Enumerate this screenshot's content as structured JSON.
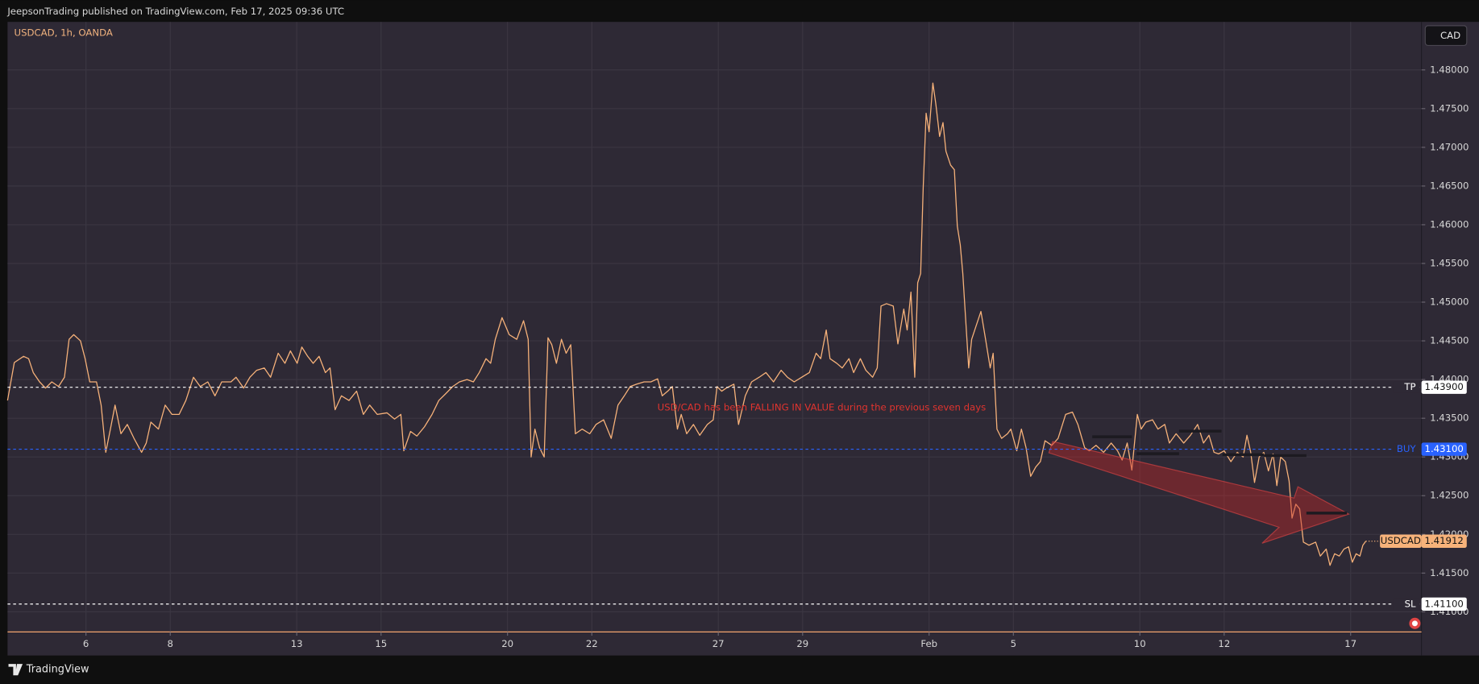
{
  "header": {
    "text": "JeepsonTrading published on TradingView.com, Feb 17, 2025 09:36 UTC"
  },
  "footer": {
    "brand": "TradingView"
  },
  "chart_data": {
    "type": "line",
    "title": "USDCAD, 1h, OANDA",
    "currency": "CAD",
    "annotation": "USD/CAD has been FALLING IN VALUE during the previous seven days",
    "grid": true,
    "xlim": [
      -1.86,
      31.68
    ],
    "ylim": [
      1.4074,
      1.4862
    ],
    "xticks": [
      {
        "value": 0,
        "label": "6"
      },
      {
        "value": 2,
        "label": "8"
      },
      {
        "value": 5,
        "label": "13"
      },
      {
        "value": 7,
        "label": "15"
      },
      {
        "value": 10,
        "label": "20"
      },
      {
        "value": 12,
        "label": "22"
      },
      {
        "value": 15,
        "label": "27"
      },
      {
        "value": 17,
        "label": "29"
      },
      {
        "value": 20,
        "label": "Feb"
      },
      {
        "value": 22,
        "label": "5"
      },
      {
        "value": 25,
        "label": "10"
      },
      {
        "value": 27,
        "label": "12"
      },
      {
        "value": 30,
        "label": "17"
      }
    ],
    "yticks": [
      {
        "value": 1.41,
        "label": "1.41000"
      },
      {
        "value": 1.415,
        "label": "1.41500"
      },
      {
        "value": 1.42,
        "label": "1.42000"
      },
      {
        "value": 1.425,
        "label": "1.42500"
      },
      {
        "value": 1.43,
        "label": "1.43000"
      },
      {
        "value": 1.435,
        "label": "1.43500"
      },
      {
        "value": 1.44,
        "label": "1.44000"
      },
      {
        "value": 1.445,
        "label": "1.44500"
      },
      {
        "value": 1.45,
        "label": "1.45000"
      },
      {
        "value": 1.455,
        "label": "1.45500"
      },
      {
        "value": 1.46,
        "label": "1.46000"
      },
      {
        "value": 1.465,
        "label": "1.46500"
      },
      {
        "value": 1.47,
        "label": "1.47000"
      },
      {
        "value": 1.475,
        "label": "1.47500"
      },
      {
        "value": 1.48,
        "label": "1.48000"
      }
    ],
    "hlines": [
      {
        "name": "TP",
        "value": 1.439,
        "label": "1.43900",
        "color": "#ffffff",
        "text_color": "#131313"
      },
      {
        "name": "BUY",
        "value": 1.431,
        "label": "1.43100",
        "color": "#2962ff",
        "text_color": "#ffffff"
      },
      {
        "name": "SL",
        "value": 1.411,
        "label": "1.41100",
        "color": "#ffffff",
        "text_color": "#131313"
      }
    ],
    "x": [
      -1.86,
      -1.7,
      -1.48,
      -1.36,
      -1.25,
      -1.1,
      -0.96,
      -0.81,
      -0.65,
      -0.51,
      -0.4,
      -0.29,
      -0.13,
      -0.02,
      0.09,
      0.25,
      0.36,
      0.47,
      0.58,
      0.69,
      0.83,
      0.98,
      1.14,
      1.32,
      1.43,
      1.54,
      1.72,
      1.88,
      2.04,
      2.21,
      2.37,
      2.55,
      2.71,
      2.89,
      3.06,
      3.22,
      3.44,
      3.56,
      3.74,
      3.89,
      4.05,
      4.23,
      4.38,
      4.56,
      4.72,
      4.85,
      5.01,
      5.12,
      5.26,
      5.39,
      5.53,
      5.68,
      5.79,
      5.91,
      6.06,
      6.24,
      6.42,
      6.58,
      6.73,
      6.91,
      7.14,
      7.32,
      7.47,
      7.54,
      7.7,
      7.85,
      8.03,
      8.21,
      8.37,
      8.52,
      8.7,
      8.86,
      9.04,
      9.19,
      9.33,
      9.49,
      9.6,
      9.71,
      9.87,
      10.04,
      10.22,
      10.38,
      10.49,
      10.56,
      10.65,
      10.76,
      10.87,
      10.96,
      11.05,
      11.16,
      11.28,
      11.39,
      11.5,
      11.61,
      11.77,
      11.95,
      12.1,
      12.28,
      12.46,
      12.62,
      12.77,
      12.91,
      13.06,
      13.24,
      13.4,
      13.56,
      13.67,
      13.8,
      13.91,
      14.03,
      14.12,
      14.25,
      14.41,
      14.56,
      14.74,
      14.88,
      14.97,
      15.08,
      15.19,
      15.37,
      15.48,
      15.64,
      15.79,
      15.97,
      16.13,
      16.31,
      16.49,
      16.64,
      16.8,
      16.98,
      17.16,
      17.32,
      17.43,
      17.56,
      17.65,
      17.81,
      17.94,
      18.1,
      18.21,
      18.37,
      18.5,
      18.66,
      18.77,
      18.86,
      18.99,
      19.15,
      19.26,
      19.4,
      19.48,
      19.57,
      19.66,
      19.73,
      19.8,
      19.86,
      19.93,
      20.0,
      20.09,
      20.16,
      20.25,
      20.33,
      20.4,
      20.51,
      20.6,
      20.67,
      20.74,
      20.8,
      20.87,
      20.94,
      21.01,
      21.12,
      21.23,
      21.34,
      21.45,
      21.52,
      21.61,
      21.72,
      21.86,
      21.94,
      22.08,
      22.19,
      22.3,
      22.41,
      22.53,
      22.64,
      22.75,
      22.91,
      23.06,
      23.24,
      23.4,
      23.53,
      23.69,
      23.8,
      23.96,
      24.14,
      24.32,
      24.47,
      24.58,
      24.7,
      24.81,
      24.94,
      25.03,
      25.14,
      25.3,
      25.43,
      25.59,
      25.7,
      25.86,
      26.04,
      26.2,
      26.37,
      26.51,
      26.64,
      26.76,
      26.87,
      27.0,
      27.16,
      27.31,
      27.45,
      27.54,
      27.63,
      27.72,
      27.83,
      27.94,
      28.05,
      28.16,
      28.25,
      28.34,
      28.45,
      28.54,
      28.61,
      28.7,
      28.79,
      28.88,
      29.01,
      29.17,
      29.28,
      29.42,
      29.51,
      29.62,
      29.73,
      29.84,
      29.95,
      30.04,
      30.13,
      30.22,
      30.29,
      30.36
    ],
    "series": [
      {
        "name": "USDCAD",
        "color": "#f7b27a",
        "values": [
          1.4373,
          1.4422,
          1.443,
          1.4427,
          1.4409,
          1.4397,
          1.4389,
          1.4397,
          1.4391,
          1.4403,
          1.4452,
          1.4458,
          1.445,
          1.4427,
          1.4397,
          1.4397,
          1.4367,
          1.4306,
          1.4336,
          1.4367,
          1.433,
          1.4342,
          1.4324,
          1.4306,
          1.4318,
          1.4345,
          1.4336,
          1.4367,
          1.4355,
          1.4355,
          1.4373,
          1.4403,
          1.4391,
          1.4397,
          1.4379,
          1.4397,
          1.4397,
          1.4403,
          1.4389,
          1.4403,
          1.4412,
          1.4415,
          1.4403,
          1.4434,
          1.4421,
          1.4437,
          1.4421,
          1.4442,
          1.443,
          1.4421,
          1.443,
          1.4409,
          1.4415,
          1.4361,
          1.4379,
          1.4373,
          1.4385,
          1.4355,
          1.4367,
          1.4355,
          1.4357,
          1.4349,
          1.4355,
          1.4308,
          1.4333,
          1.4327,
          1.4339,
          1.4355,
          1.4373,
          1.4381,
          1.4391,
          1.4397,
          1.44,
          1.4397,
          1.4409,
          1.4427,
          1.4421,
          1.4452,
          1.448,
          1.4458,
          1.4452,
          1.4476,
          1.4452,
          1.43,
          1.4336,
          1.4312,
          1.43,
          1.4454,
          1.4445,
          1.4421,
          1.4452,
          1.4434,
          1.4445,
          1.433,
          1.4336,
          1.433,
          1.4342,
          1.4348,
          1.4324,
          1.4367,
          1.4379,
          1.4391,
          1.4394,
          1.4397,
          1.4397,
          1.4401,
          1.4379,
          1.4385,
          1.4391,
          1.4336,
          1.4355,
          1.433,
          1.4342,
          1.4328,
          1.4342,
          1.4348,
          1.4391,
          1.4385,
          1.4389,
          1.4394,
          1.4342,
          1.4379,
          1.4397,
          1.4403,
          1.4409,
          1.4397,
          1.4412,
          1.4403,
          1.4397,
          1.4403,
          1.4409,
          1.4434,
          1.4427,
          1.4464,
          1.4427,
          1.4421,
          1.4415,
          1.4427,
          1.4409,
          1.4427,
          1.4412,
          1.4403,
          1.4415,
          1.4495,
          1.4498,
          1.4495,
          1.4446,
          1.4491,
          1.4464,
          1.4513,
          1.4403,
          1.4525,
          1.4537,
          1.4647,
          1.4744,
          1.472,
          1.4783,
          1.4756,
          1.4714,
          1.4732,
          1.4695,
          1.4677,
          1.4671,
          1.4598,
          1.4574,
          1.4537,
          1.4476,
          1.4415,
          1.4452,
          1.447,
          1.4488,
          1.4452,
          1.4415,
          1.4434,
          1.4336,
          1.4324,
          1.433,
          1.4336,
          1.4308,
          1.4336,
          1.4312,
          1.4275,
          1.4287,
          1.4294,
          1.4321,
          1.4315,
          1.4324,
          1.4355,
          1.4358,
          1.4342,
          1.4312,
          1.4308,
          1.4315,
          1.4306,
          1.4318,
          1.4308,
          1.4296,
          1.4318,
          1.4283,
          1.4355,
          1.4336,
          1.4345,
          1.4348,
          1.4336,
          1.4342,
          1.4318,
          1.433,
          1.4318,
          1.4328,
          1.4342,
          1.4318,
          1.4328,
          1.4306,
          1.4304,
          1.4308,
          1.4294,
          1.4306,
          1.43,
          1.4328,
          1.4306,
          1.4267,
          1.43,
          1.4306,
          1.4282,
          1.4304,
          1.4263,
          1.43,
          1.4294,
          1.4269,
          1.4221,
          1.4239,
          1.4233,
          1.419,
          1.4186,
          1.419,
          1.4172,
          1.4181,
          1.416,
          1.4175,
          1.4172,
          1.4181,
          1.4184,
          1.4164,
          1.4175,
          1.4172,
          1.4186,
          1.41912
        ]
      }
    ]
  }
}
